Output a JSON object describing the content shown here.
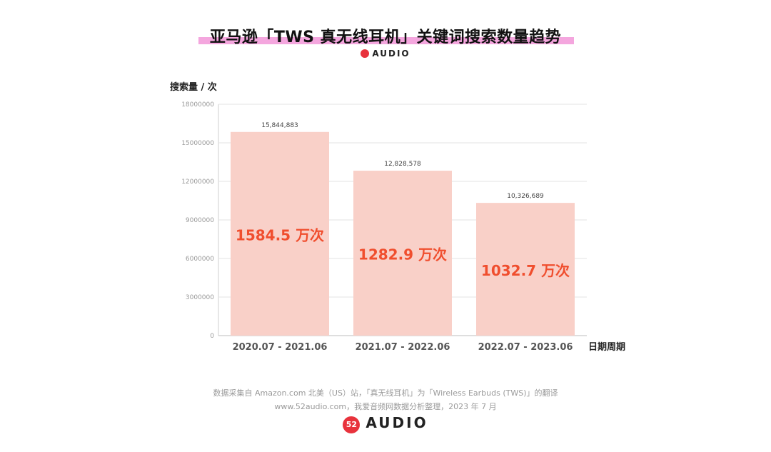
{
  "title": "亚马逊「TWS 真无线耳机」关键词搜索数量趋势",
  "brand": "AUDIO",
  "brand_logo_text": "52",
  "footer": {
    "line1": "数据采集自 Amazon.com 北美（US）站，「真无线耳机」为「Wireless Earbuds (TWS)」的翻译",
    "line2": "www.52audio.com，我爱音频网数据分析整理，2023 年 7 月"
  },
  "colors": {
    "bar": "#f9d0c8",
    "highlight_label": "#f04e2e",
    "title_underline": "#f4a6de",
    "brand_red": "#e8323c"
  },
  "chart_data": {
    "type": "bar",
    "ylabel": "搜索量 / 次",
    "xlabel": "日期周期",
    "ylim": [
      0,
      18000000
    ],
    "yticks": [
      "0",
      "3000000",
      "6000000",
      "9000000",
      "12000000",
      "15000000",
      "18000000"
    ],
    "grid": true,
    "categories": [
      "2020.07 - 2021.06",
      "2021.07 - 2022.06",
      "2022.07 - 2023.06"
    ],
    "values": [
      15844883,
      12828578,
      10326689
    ],
    "value_labels": [
      "15,844,883",
      "12,828,578",
      "10,326,689"
    ],
    "inner_labels": [
      "1584.5 万次",
      "1282.9 万次",
      "1032.7 万次"
    ]
  }
}
